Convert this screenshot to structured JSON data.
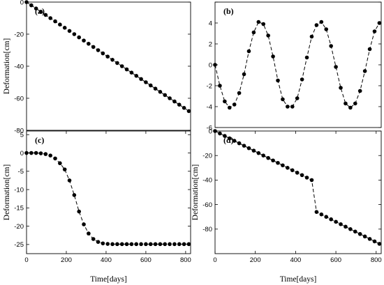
{
  "chart_data": [
    {
      "type": "line",
      "panel": "(a)",
      "xlabel": "",
      "ylabel": "Deformation[cm]",
      "xlim": [
        0,
        825
      ],
      "ylim": [
        -80,
        0
      ],
      "xticks": [],
      "yticks": [
        0,
        -20,
        -40,
        -60,
        -80
      ],
      "ytick_labels": [
        "0",
        "-20",
        "-40",
        "-60",
        "-80"
      ],
      "series": [
        {
          "line_style": "dashed",
          "marker": "filled-circle",
          "x": [
            0,
            24,
            48,
            72,
            96,
            120,
            144,
            168,
            192,
            216,
            240,
            264,
            288,
            312,
            336,
            360,
            384,
            408,
            432,
            456,
            480,
            504,
            528,
            552,
            576,
            600,
            624,
            648,
            672,
            696,
            720,
            744,
            768,
            792,
            816
          ],
          "y": [
            0,
            -2,
            -4,
            -6,
            -8,
            -10,
            -12,
            -14,
            -16,
            -18,
            -20,
            -22,
            -24,
            -26,
            -28,
            -30,
            -32,
            -34,
            -36,
            -38,
            -40,
            -42,
            -44,
            -46,
            -48,
            -50,
            -52,
            -54,
            -56,
            -58,
            -60,
            -62,
            -64,
            -66,
            -68
          ]
        }
      ]
    },
    {
      "type": "line",
      "panel": "(b)",
      "xlabel": "",
      "ylabel": "",
      "xlim": [
        0,
        825
      ],
      "ylim": [
        -6,
        6
      ],
      "xticks": [],
      "yticks": [
        6,
        4,
        2,
        0,
        -2,
        -4,
        -6
      ],
      "ytick_labels": [
        "",
        "4",
        "2",
        "0",
        "-2",
        "-4",
        "-6"
      ],
      "series": [
        {
          "line_style": "dashed",
          "marker": "filled-circle",
          "x": [
            0,
            24,
            48,
            72,
            96,
            120,
            144,
            168,
            192,
            216,
            240,
            264,
            288,
            312,
            336,
            360,
            384,
            408,
            432,
            456,
            480,
            504,
            528,
            552,
            576,
            600,
            624,
            648,
            672,
            696,
            720,
            744,
            768,
            792,
            816
          ],
          "y": [
            0,
            -2,
            -3.5,
            -4.1,
            -3.8,
            -2.7,
            -0.9,
            1.3,
            3.1,
            4.1,
            3.9,
            2.8,
            0.8,
            -1.5,
            -3.3,
            -4.0,
            -4.0,
            -3.2,
            -1.4,
            0.7,
            2.7,
            3.8,
            4.1,
            3.4,
            1.8,
            -0.2,
            -2.2,
            -3.7,
            -4.1,
            -3.7,
            -2.5,
            -0.6,
            1.5,
            3.2,
            4.0
          ]
        }
      ]
    },
    {
      "type": "line",
      "panel": "(c)",
      "xlabel": "Time[days]",
      "ylabel": "Deformation[cm]",
      "xlim": [
        0,
        825
      ],
      "ylim": [
        -27.5,
        6
      ],
      "xticks": [
        0,
        200,
        400,
        600,
        800
      ],
      "xtick_labels": [
        "0",
        "200",
        "400",
        "600",
        "800"
      ],
      "yticks": [
        5,
        0,
        -5,
        -10,
        -15,
        -20,
        -25
      ],
      "ytick_labels": [
        "5",
        "0",
        "-5",
        "-10",
        "-15",
        "-20",
        "-25"
      ],
      "series": [
        {
          "line_style": "dashed",
          "marker": "filled-circle",
          "x": [
            0,
            24,
            48,
            72,
            96,
            120,
            144,
            168,
            192,
            216,
            240,
            264,
            288,
            312,
            336,
            360,
            384,
            408,
            432,
            456,
            480,
            504,
            528,
            552,
            576,
            600,
            624,
            648,
            672,
            696,
            720,
            744,
            768,
            792,
            816
          ],
          "y": [
            0,
            0,
            0,
            -0.1,
            -0.3,
            -0.7,
            -1.5,
            -2.8,
            -4.5,
            -7.5,
            -11.5,
            -16,
            -19.5,
            -22,
            -23.5,
            -24.3,
            -24.7,
            -24.85,
            -24.9,
            -24.9,
            -24.9,
            -24.9,
            -24.9,
            -24.9,
            -24.9,
            -24.9,
            -24.9,
            -24.9,
            -24.9,
            -24.9,
            -24.9,
            -24.9,
            -24.9,
            -24.9,
            -24.9
          ]
        }
      ]
    },
    {
      "type": "line",
      "panel": "(d)",
      "xlabel": "Time[days]",
      "ylabel": "Deformation[cm]",
      "xlim": [
        0,
        825
      ],
      "ylim": [
        -100,
        0
      ],
      "xticks": [
        0,
        200,
        400,
        600,
        800
      ],
      "xtick_labels": [
        "0",
        "200",
        "400",
        "600",
        "800"
      ],
      "yticks": [
        0,
        -20,
        -40,
        -60,
        -80
      ],
      "ytick_labels": [
        "0",
        "-20",
        "-40",
        "-60",
        "-80"
      ],
      "series": [
        {
          "line_style": "dashed",
          "marker": "filled-circle",
          "x": [
            0,
            24,
            48,
            72,
            96,
            120,
            144,
            168,
            192,
            216,
            240,
            264,
            288,
            312,
            336,
            360,
            384,
            408,
            432,
            456,
            480,
            504,
            528,
            552,
            576,
            600,
            624,
            648,
            672,
            696,
            720,
            744,
            768,
            792,
            816
          ],
          "y": [
            0,
            -2,
            -4,
            -6,
            -8,
            -10,
            -12,
            -14,
            -16,
            -18,
            -20,
            -22,
            -24,
            -26,
            -28,
            -30,
            -32,
            -34,
            -36,
            -38,
            -40,
            -66,
            -68,
            -70,
            -72,
            -74,
            -76,
            -78,
            -80,
            -82,
            -84,
            -86,
            -88,
            -90,
            -92
          ]
        }
      ]
    }
  ]
}
